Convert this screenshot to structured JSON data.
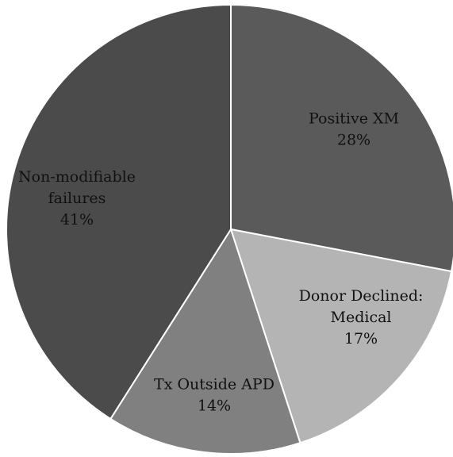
{
  "chart_data": {
    "type": "pie",
    "title": "",
    "slices": [
      {
        "label_lines": [
          "Positive XM"
        ],
        "value_label": "28%",
        "value": 28,
        "color": "#5a5a5a"
      },
      {
        "label_lines": [
          "Donor Declined:",
          "Medical"
        ],
        "value_label": "17%",
        "value": 17,
        "color": "#b4b4b4"
      },
      {
        "label_lines": [
          "Tx Outside APD"
        ],
        "value_label": "14%",
        "value": 14,
        "color": "#808080"
      },
      {
        "label_lines": [
          "Non-modifiable",
          "failures"
        ],
        "value_label": "41%",
        "value": 41,
        "color": "#4b4b4b"
      }
    ],
    "legend": "none",
    "stroke_color": "#ffffff"
  }
}
